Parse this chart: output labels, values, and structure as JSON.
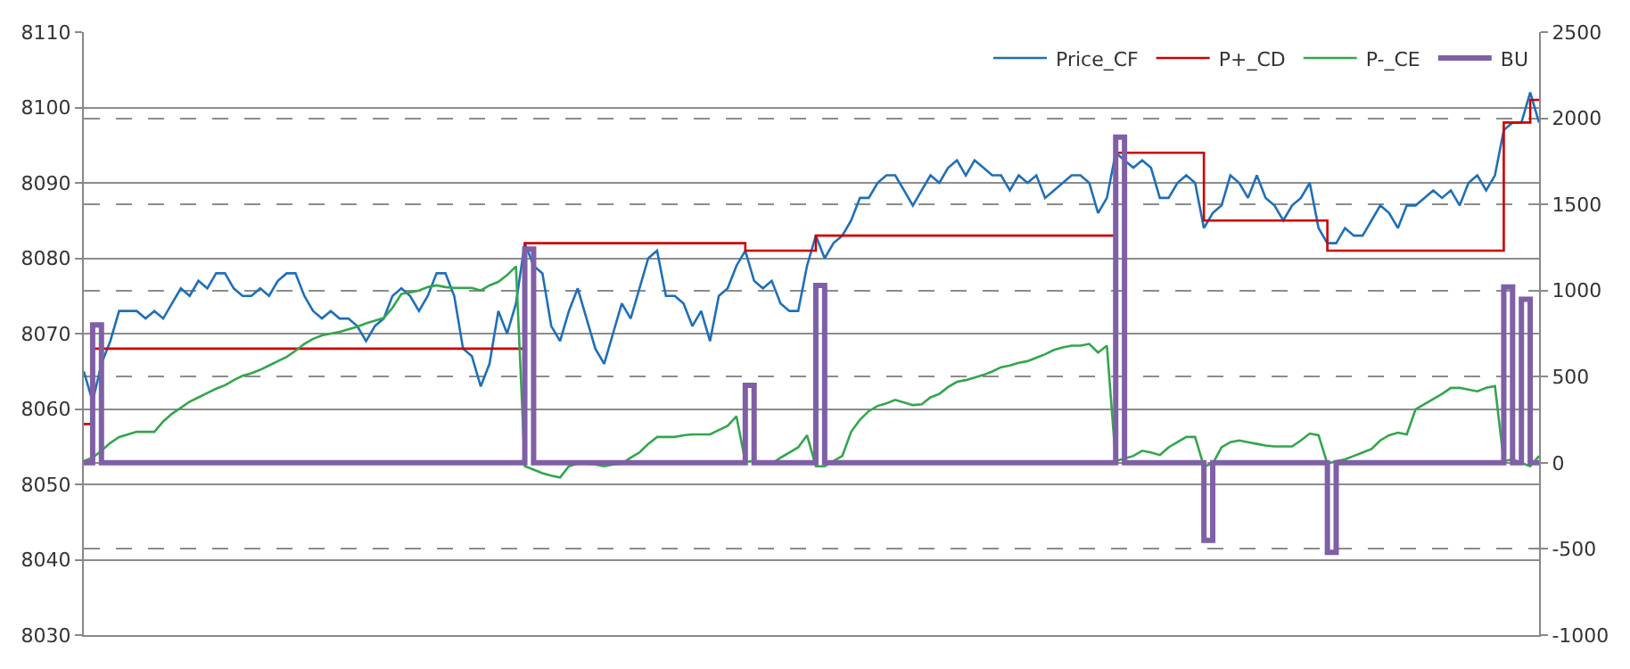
{
  "chart_data": {
    "type": "line",
    "categories": [
      null,
      null,
      null,
      null,
      null,
      null,
      null,
      null,
      null,
      null,
      null,
      null,
      null,
      null,
      null,
      null,
      null,
      null,
      null,
      null,
      null,
      null,
      null,
      null,
      null,
      null,
      null,
      null,
      null,
      null,
      null,
      null,
      null,
      null,
      null,
      null,
      null,
      null,
      null,
      null,
      null,
      null,
      null,
      null,
      null,
      null,
      null,
      null,
      null,
      null,
      null,
      null,
      null,
      null,
      null,
      null,
      null,
      null,
      null,
      null,
      null,
      null,
      null,
      null,
      null,
      null,
      null,
      null,
      null,
      null,
      null,
      null,
      null,
      null,
      null,
      null,
      null,
      null,
      null,
      null,
      null,
      null,
      null,
      null,
      null,
      null,
      null,
      null,
      null,
      null,
      null,
      null,
      null,
      null,
      null,
      null,
      null,
      null,
      null,
      null,
      null,
      null,
      null,
      null,
      null,
      null,
      null,
      null,
      null,
      null,
      null,
      null,
      null,
      null,
      null,
      null,
      null,
      null,
      null,
      null,
      null,
      null,
      null,
      null,
      null,
      null,
      null,
      null,
      null,
      null,
      null,
      null,
      null,
      null,
      null,
      null,
      null,
      null,
      null,
      null,
      null,
      null,
      null,
      null,
      null,
      null,
      null,
      null,
      null,
      null,
      null,
      null,
      null,
      null,
      null,
      null,
      null,
      null,
      null,
      null,
      null,
      null,
      null,
      null,
      null,
      null
    ],
    "series": [
      {
        "name": "Price_CF",
        "color": "#1f6fb8",
        "values": [
          8065,
          8061,
          8066,
          8069,
          8073,
          8073,
          8073,
          8072,
          8073,
          8072,
          8074,
          8076,
          8075,
          8077,
          8076,
          8078,
          8078,
          8076,
          8075,
          8075,
          8076,
          8075,
          8077,
          8078,
          8078,
          8075,
          8073,
          8072,
          8073,
          8072,
          8072,
          8071,
          8069,
          8071,
          8072,
          8075,
          8076,
          8075,
          8073,
          8075,
          8078,
          8078,
          8075,
          8068,
          8067,
          8063,
          8066,
          8073,
          8070,
          8074,
          8082,
          8079,
          8078,
          8071,
          8069,
          8073,
          8076,
          8072,
          8068,
          8066,
          8070,
          8074,
          8072,
          8076,
          8080,
          8081,
          8075,
          8075,
          8074,
          8071,
          8073,
          8069,
          8075,
          8076,
          8079,
          8081,
          8077,
          8076,
          8077,
          8074,
          8073,
          8073,
          8079,
          8083,
          8080,
          8082,
          8083,
          8085,
          8088,
          8088,
          8090,
          8091,
          8091,
          8089,
          8087,
          8089,
          8091,
          8090,
          8092,
          8093,
          8091,
          8093,
          8092,
          8091,
          8091,
          8089,
          8091,
          8090,
          8091,
          8088,
          8089,
          8090,
          8091,
          8091,
          8090,
          8086,
          8088,
          8094,
          8093,
          8092,
          8093,
          8092,
          8088,
          8088,
          8090,
          8091,
          8090,
          8084,
          8086,
          8087,
          8091,
          8090,
          8088,
          8091,
          8088,
          8087,
          8085,
          8087,
          8088,
          8090,
          8084,
          8082,
          8082,
          8084,
          8083,
          8083,
          8085,
          8087,
          8086,
          8084,
          8087,
          8087,
          8088,
          8089,
          8088,
          8089,
          8087,
          8090,
          8091,
          8089,
          8091,
          8097,
          8098,
          8098,
          8102,
          8098
        ]
      },
      {
        "name": "P+_CD",
        "color": "#cc0000",
        "type": "step",
        "values": [
          8058,
          8068,
          8068,
          8068,
          8068,
          8068,
          8068,
          8068,
          8068,
          8068,
          8068,
          8068,
          8068,
          8068,
          8068,
          8068,
          8068,
          8068,
          8068,
          8068,
          8068,
          8068,
          8068,
          8068,
          8068,
          8068,
          8068,
          8068,
          8068,
          8068,
          8068,
          8068,
          8068,
          8068,
          8068,
          8068,
          8068,
          8068,
          8068,
          8068,
          8068,
          8068,
          8068,
          8068,
          8068,
          8068,
          8068,
          8068,
          8068,
          8068,
          8082,
          8082,
          8082,
          8082,
          8082,
          8082,
          8082,
          8082,
          8082,
          8082,
          8082,
          8082,
          8082,
          8082,
          8082,
          8082,
          8082,
          8082,
          8082,
          8082,
          8082,
          8082,
          8082,
          8082,
          8082,
          8081,
          8081,
          8081,
          8081,
          8081,
          8081,
          8081,
          8081,
          8083,
          8083,
          8083,
          8083,
          8083,
          8083,
          8083,
          8083,
          8083,
          8083,
          8083,
          8083,
          8083,
          8083,
          8083,
          8083,
          8083,
          8083,
          8083,
          8083,
          8083,
          8083,
          8083,
          8083,
          8083,
          8083,
          8083,
          8083,
          8083,
          8083,
          8083,
          8083,
          8083,
          8083,
          8094,
          8094,
          8094,
          8094,
          8094,
          8094,
          8094,
          8094,
          8094,
          8094,
          8085,
          8085,
          8085,
          8085,
          8085,
          8085,
          8085,
          8085,
          8085,
          8085,
          8085,
          8085,
          8085,
          8085,
          8081,
          8081,
          8081,
          8081,
          8081,
          8081,
          8081,
          8081,
          8081,
          8081,
          8081,
          8081,
          8081,
          8081,
          8081,
          8081,
          8081,
          8081,
          8081,
          8081,
          8098,
          8098,
          8098,
          8101,
          8101
        ]
      },
      {
        "name": "P-_CE",
        "color": "#33a64c",
        "axis": "y2",
        "values": [
          10,
          30,
          70,
          115,
          150,
          165,
          180,
          180,
          180,
          240,
          285,
          320,
          355,
          380,
          405,
          430,
          450,
          480,
          505,
          520,
          540,
          565,
          590,
          615,
          650,
          690,
          720,
          740,
          750,
          760,
          775,
          790,
          810,
          825,
          840,
          900,
          980,
          990,
          1000,
          1020,
          1030,
          1020,
          1015,
          1015,
          1015,
          1000,
          1030,
          1050,
          1090,
          1140,
          -20,
          -40,
          -60,
          -75,
          -85,
          -20,
          -5,
          -5,
          -10,
          -20,
          -10,
          -5,
          30,
          60,
          110,
          150,
          150,
          150,
          160,
          165,
          165,
          165,
          190,
          215,
          270,
          5,
          10,
          0,
          -5,
          30,
          60,
          90,
          160,
          -20,
          -20,
          10,
          40,
          180,
          250,
          300,
          330,
          345,
          365,
          350,
          335,
          340,
          380,
          400,
          440,
          470,
          480,
          495,
          510,
          530,
          555,
          565,
          580,
          590,
          610,
          630,
          655,
          670,
          680,
          680,
          690,
          640,
          680,
          10,
          25,
          40,
          70,
          60,
          45,
          90,
          120,
          150,
          150,
          -20,
          -5,
          90,
          120,
          130,
          120,
          110,
          100,
          95,
          95,
          95,
          130,
          170,
          160,
          -5,
          10,
          20,
          40,
          60,
          80,
          130,
          160,
          175,
          165,
          310,
          340,
          370,
          400,
          435,
          435,
          425,
          415,
          435,
          445,
          10,
          20,
          0,
          -20,
          40
        ]
      },
      {
        "name": "BU",
        "color": "#7f5fa6",
        "axis": "y2",
        "type": "step",
        "values": [
          0,
          800,
          0,
          0,
          0,
          0,
          0,
          0,
          0,
          0,
          0,
          0,
          0,
          0,
          0,
          0,
          0,
          0,
          0,
          0,
          0,
          0,
          0,
          0,
          0,
          0,
          0,
          0,
          0,
          0,
          0,
          0,
          0,
          0,
          0,
          0,
          0,
          0,
          0,
          0,
          0,
          0,
          0,
          0,
          0,
          0,
          0,
          0,
          0,
          0,
          1240,
          0,
          0,
          0,
          0,
          0,
          0,
          0,
          0,
          0,
          0,
          0,
          0,
          0,
          0,
          0,
          0,
          0,
          0,
          0,
          0,
          0,
          0,
          0,
          0,
          450,
          0,
          0,
          0,
          0,
          0,
          0,
          0,
          1030,
          0,
          0,
          0,
          0,
          0,
          0,
          0,
          0,
          0,
          0,
          0,
          0,
          0,
          0,
          0,
          0,
          0,
          0,
          0,
          0,
          0,
          0,
          0,
          0,
          0,
          0,
          0,
          0,
          0,
          0,
          0,
          0,
          0,
          1890,
          0,
          0,
          0,
          0,
          0,
          0,
          0,
          0,
          0,
          -450,
          0,
          0,
          0,
          0,
          0,
          0,
          0,
          0,
          0,
          0,
          0,
          0,
          0,
          -520,
          0,
          0,
          0,
          0,
          0,
          0,
          0,
          0,
          0,
          0,
          0,
          0,
          0,
          0,
          0,
          0,
          0,
          0,
          0,
          1020,
          0,
          950,
          0,
          0
        ]
      }
    ],
    "ylim": [
      8030,
      8110
    ],
    "yticks": [
      8030,
      8040,
      8050,
      8060,
      8070,
      8080,
      8090,
      8100,
      8110
    ],
    "y2lim": [
      -1000,
      2500
    ],
    "y2ticks": [
      -1000,
      -500,
      0,
      500,
      1000,
      1500,
      2000,
      2500
    ],
    "grid": true,
    "legend": "top right"
  }
}
